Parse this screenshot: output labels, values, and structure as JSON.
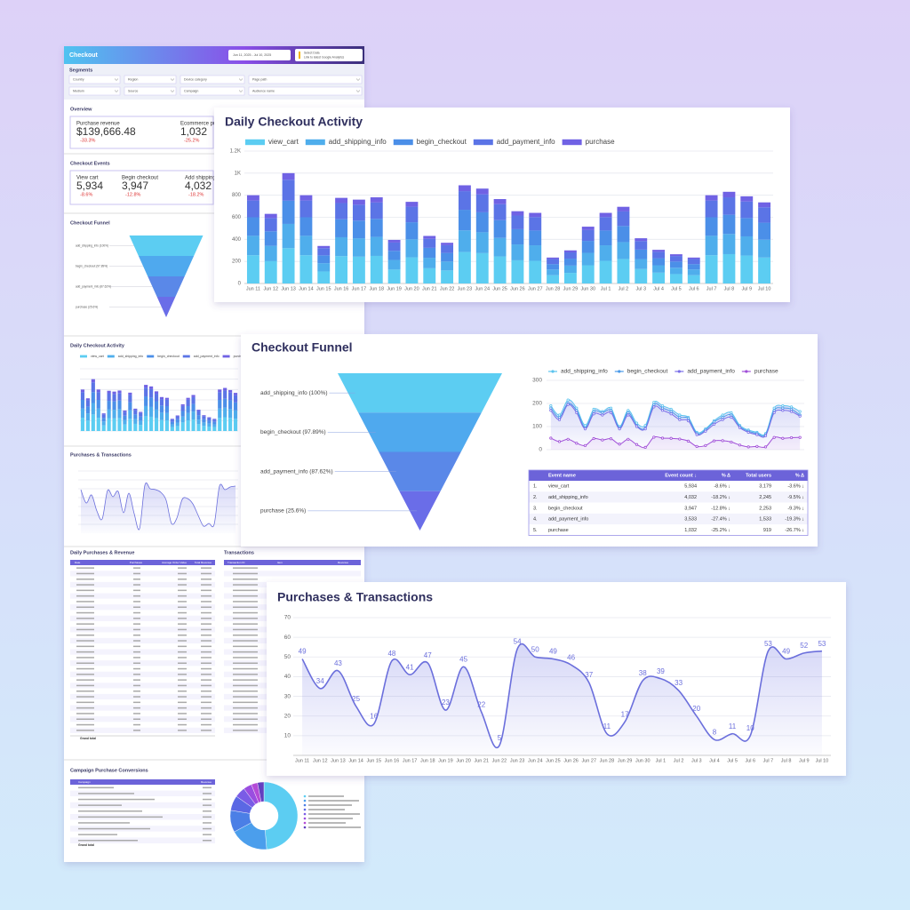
{
  "dashboard": {
    "title": "Checkout",
    "date_range": "Jun 11, 2025 - Jul 10, 2025",
    "data_source": [
      "Select Data",
      "Link to latest Google Analytics"
    ],
    "segments_title": "Segments",
    "filters": [
      "Country",
      "Region",
      "Device category",
      "Page path",
      "Medium",
      "Source",
      "Campaign",
      "Audience name"
    ],
    "overview": {
      "title": "Overview",
      "metrics": [
        {
          "label": "Purchase revenue",
          "value": "$139,666.48",
          "change": "-33.3%"
        },
        {
          "label": "Ecommerce purchases",
          "value": "1,032",
          "change": "-25.2%"
        }
      ]
    },
    "checkout_events": {
      "title": "Checkout Events",
      "metrics": [
        {
          "label": "View cart",
          "value": "5,934",
          "change": "-8.6%"
        },
        {
          "label": "Begin checkout",
          "value": "3,947",
          "change": "-12.8%"
        },
        {
          "label": "Add shipping info",
          "value": "4,032",
          "change": "-18.2%"
        }
      ]
    },
    "funnel_title": "Checkout Funnel",
    "activity_title": "Daily Checkout Activity",
    "purchases_title": "Purchases & Transactions",
    "daily_table": {
      "title": "Daily Purchases & Revenue",
      "columns": [
        "Date",
        "Purchases",
        "Average Order Value",
        "Total Revenue"
      ],
      "total_label": "Grand total"
    },
    "transactions_table": {
      "title": "Transactions",
      "columns": [
        "Transaction ID",
        "Item",
        "Revenue"
      ]
    },
    "campaign": {
      "title": "Campaign Purchase Conversions",
      "columns": [
        "Campaign",
        "Revenue"
      ],
      "total_label": "Grand total",
      "donut": {
        "type": "pie",
        "values": [
          48.7,
          18.4,
          10.5,
          7.2,
          5.1,
          4.0,
          3.0,
          3.1
        ],
        "colors": [
          "#5ccdf2",
          "#4b9eec",
          "#4b7fe6",
          "#5b68e4",
          "#7a5ce6",
          "#9a4ee0",
          "#b44bd6",
          "#6240c0"
        ]
      }
    }
  },
  "daily_checkout_activity": {
    "type": "bar",
    "title": "Daily Checkout Activity",
    "stacked": true,
    "categories": [
      "Jun 11",
      "Jun 12",
      "Jun 13",
      "Jun 14",
      "Jun 15",
      "Jun 16",
      "Jun 17",
      "Jun 18",
      "Jun 19",
      "Jun 20",
      "Jun 21",
      "Jun 22",
      "Jun 23",
      "Jun 24",
      "Jun 25",
      "Jun 26",
      "Jun 27",
      "Jun 28",
      "Jun 29",
      "Jun 30",
      "Jul 1",
      "Jul 2",
      "Jul 3",
      "Jul 4",
      "Jul 5",
      "Jul 6",
      "Jul 7",
      "Jul 8",
      "Jul 9",
      "Jul 10"
    ],
    "series": [
      {
        "name": "view_cart",
        "color": "#5ccdf2",
        "values": [
          256,
          202,
          320,
          256,
          109,
          248,
          243,
          250,
          126,
          237,
          138,
          118,
          285,
          275,
          245,
          210,
          205,
          75,
          96,
          165,
          205,
          222,
          131,
          98,
          85,
          75,
          256,
          266,
          253,
          235
        ]
      },
      {
        "name": "add_shipping_info",
        "color": "#4faeec",
        "values": [
          176,
          139,
          220,
          176,
          75,
          171,
          167,
          172,
          87,
          163,
          95,
          81,
          196,
          189,
          168,
          144,
          141,
          52,
          66,
          113,
          141,
          153,
          90,
          67,
          58,
          52,
          176,
          183,
          174,
          162
        ]
      },
      {
        "name": "begin_checkout",
        "color": "#4b8fe8",
        "values": [
          168,
          132,
          210,
          168,
          71,
          163,
          160,
          164,
          83,
          155,
          90,
          78,
          187,
          181,
          161,
          138,
          134,
          49,
          63,
          108,
          134,
          146,
          86,
          64,
          56,
          49,
          168,
          174,
          166,
          154
        ]
      },
      {
        "name": "add_payment_info",
        "color": "#5b74e6",
        "values": [
          152,
          120,
          190,
          152,
          65,
          147,
          144,
          148,
          75,
          141,
          82,
          70,
          169,
          163,
          145,
          124,
          122,
          45,
          57,
          98,
          122,
          132,
          78,
          58,
          50,
          45,
          152,
          158,
          150,
          140
        ]
      },
      {
        "name": "purchase",
        "color": "#7062e4",
        "values": [
          48,
          38,
          60,
          48,
          20,
          47,
          46,
          47,
          24,
          44,
          26,
          22,
          53,
          52,
          46,
          39,
          38,
          14,
          18,
          31,
          38,
          42,
          25,
          18,
          16,
          14,
          48,
          50,
          47,
          44
        ]
      }
    ],
    "ylim": [
      0,
      1200
    ],
    "yticks": [
      0,
      200,
      400,
      600,
      800,
      {
        "value": 1000,
        "label": "1K"
      },
      {
        "value": 1200,
        "label": "1.2K"
      }
    ],
    "grid": true
  },
  "checkout_funnel": {
    "title": "Checkout Funnel",
    "funnel": {
      "type": "funnel",
      "labels": [
        "add_shipping_info (100%)",
        "begin_checkout (97.89%)",
        "add_payment_info (87.62%)",
        "purchase (25.6%)"
      ],
      "colors": [
        "#5ccdf2",
        "#4fa9ee",
        "#5a88e8",
        "#6a6de8"
      ]
    },
    "trend": {
      "type": "line",
      "ylim": [
        0,
        300
      ],
      "yticks": [
        0,
        100,
        200,
        300
      ],
      "grid": true,
      "series": [
        {
          "name": "add_shipping_info",
          "color": "#5cc4ee",
          "values": [
            190,
            150,
            215,
            180,
            105,
            175,
            165,
            180,
            100,
            170,
            115,
            105,
            205,
            190,
            175,
            150,
            140,
            75,
            90,
            125,
            150,
            160,
            105,
            85,
            75,
            70,
            180,
            190,
            185,
            165
          ]
        },
        {
          "name": "begin_checkout",
          "color": "#4a9ae8",
          "values": [
            180,
            140,
            200,
            170,
            95,
            165,
            160,
            170,
            95,
            160,
            105,
            95,
            195,
            180,
            165,
            140,
            135,
            70,
            85,
            120,
            140,
            150,
            100,
            80,
            70,
            65,
            170,
            180,
            175,
            150
          ]
        },
        {
          "name": "add_payment_info",
          "color": "#7a6fe8",
          "values": [
            170,
            130,
            195,
            160,
            90,
            155,
            150,
            160,
            90,
            150,
            100,
            90,
            185,
            170,
            155,
            130,
            125,
            65,
            80,
            110,
            130,
            140,
            95,
            75,
            65,
            60,
            160,
            170,
            165,
            145
          ]
        },
        {
          "name": "purchase",
          "color": "#a04fd8",
          "values": [
            50,
            35,
            45,
            28,
            18,
            48,
            42,
            47,
            24,
            45,
            22,
            10,
            54,
            50,
            49,
            46,
            37,
            14,
            18,
            38,
            39,
            33,
            20,
            12,
            14,
            12,
            53,
            49,
            52,
            53
          ]
        }
      ]
    },
    "table": {
      "columns": [
        "Event name",
        "Event count ↓",
        "% Δ",
        "Total users",
        "% Δ"
      ],
      "rows": [
        [
          "1.",
          "view_cart",
          "5,934",
          "-8.6% ↓",
          "3,179",
          "-3.6% ↓"
        ],
        [
          "2.",
          "add_shipping_info",
          "4,032",
          "-18.2% ↓",
          "2,245",
          "-9.5% ↓"
        ],
        [
          "3.",
          "begin_checkout",
          "3,947",
          "-12.8% ↓",
          "2,253",
          "-9.3% ↓"
        ],
        [
          "4.",
          "add_payment_info",
          "3,533",
          "-27.4% ↓",
          "1,533",
          "-19.3% ↓"
        ],
        [
          "5.",
          "purchase",
          "1,032",
          "-25.2% ↓",
          "919",
          "-26.7% ↓"
        ]
      ]
    }
  },
  "purchases_transactions": {
    "type": "line",
    "title": "Purchases & Transactions",
    "color": "#6b6fdc",
    "categories": [
      "Jun 11",
      "Jun 12",
      "Jun 13",
      "Jun 14",
      "Jun 15",
      "Jun 16",
      "Jun 17",
      "Jun 18",
      "Jun 19",
      "Jun 20",
      "Jun 21",
      "Jun 22",
      "Jun 23",
      "Jun 24",
      "Jun 25",
      "Jun 26",
      "Jun 27",
      "Jun 28",
      "Jun 29",
      "Jun 30",
      "Jul 1",
      "Jul 2",
      "Jul 3",
      "Jul 4",
      "Jul 5",
      "Jul 6",
      "Jul 7",
      "Jul 8",
      "Jul 9",
      "Jul 10"
    ],
    "values": [
      49,
      34,
      43,
      25,
      16,
      48,
      41,
      47,
      23,
      45,
      22,
      5,
      54,
      50,
      49,
      46,
      37,
      11,
      17,
      38,
      39,
      33,
      20,
      8,
      11,
      10,
      53,
      49,
      52,
      53
    ],
    "ylim": [
      0,
      70
    ],
    "yticks": [
      10,
      20,
      30,
      40,
      50,
      60,
      70
    ],
    "grid": true
  }
}
